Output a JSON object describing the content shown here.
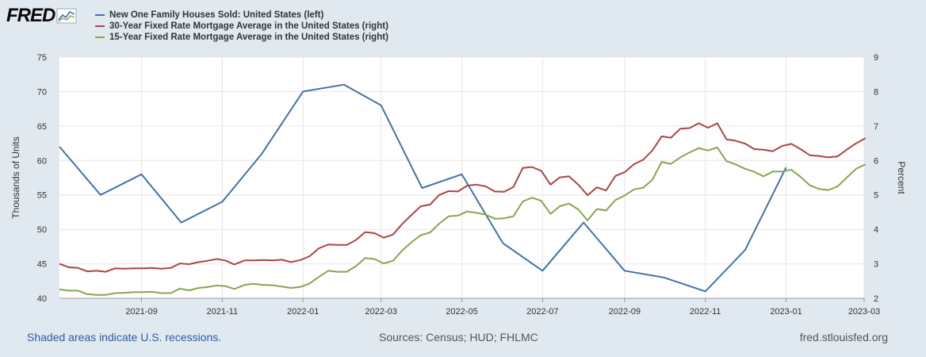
{
  "brand": {
    "logo_text": "FRED",
    "logo_icon": "chart-line-icon"
  },
  "legend": [
    {
      "label": "New One Family Houses Sold: United States (left)",
      "color": "#4572a7"
    },
    {
      "label": "30-Year Fixed Rate Mortgage Average in the United States (right)",
      "color": "#aa4643"
    },
    {
      "label": "15-Year Fixed Rate Mortgage Average in the United States (right)",
      "color": "#89a54e"
    }
  ],
  "footer": {
    "recessions_note": "Shaded areas indicate U.S. recessions.",
    "sources": "Sources: Census; HUD; FHLMC",
    "site": "fred.stlouisfed.org"
  },
  "chart_data": {
    "type": "line",
    "x_range": [
      "2021-07-01",
      "2023-03-01"
    ],
    "x_ticks": [
      "2021-09",
      "2021-11",
      "2022-01",
      "2022-03",
      "2022-05",
      "2022-07",
      "2022-09",
      "2022-11",
      "2023-01",
      "2023-03"
    ],
    "ylabel_left": "Thousands of Units",
    "ylabel_right": "Percent",
    "ylim_left": [
      40,
      75
    ],
    "ylim_right": [
      2,
      9
    ],
    "yticks_left": [
      40,
      45,
      50,
      55,
      60,
      65,
      70,
      75
    ],
    "yticks_right": [
      2,
      3,
      4,
      5,
      6,
      7,
      8,
      9
    ],
    "grid": true,
    "series": [
      {
        "name": "New One Family Houses Sold: United States (left)",
        "axis": "left",
        "color": "#4572a7",
        "x": [
          "2021-07-01",
          "2021-08-01",
          "2021-09-01",
          "2021-10-01",
          "2021-11-01",
          "2021-12-01",
          "2022-01-01",
          "2022-02-01",
          "2022-03-01",
          "2022-04-01",
          "2022-05-01",
          "2022-06-01",
          "2022-07-01",
          "2022-08-01",
          "2022-09-01",
          "2022-10-01",
          "2022-11-01",
          "2022-12-01",
          "2023-01-01"
        ],
        "y": [
          62,
          55,
          58,
          51,
          54,
          61,
          70,
          71,
          68,
          56,
          58,
          48,
          44,
          51,
          44,
          43,
          41,
          47,
          59
        ]
      },
      {
        "name": "30-Year Fixed Rate Mortgage Average in the United States (right)",
        "axis": "right",
        "color": "#aa4643",
        "x": [
          "2021-07-01",
          "2021-07-08",
          "2021-07-15",
          "2021-07-22",
          "2021-07-29",
          "2021-08-05",
          "2021-08-12",
          "2021-08-19",
          "2021-08-26",
          "2021-09-02",
          "2021-09-09",
          "2021-09-16",
          "2021-09-23",
          "2021-09-30",
          "2021-10-07",
          "2021-10-14",
          "2021-10-21",
          "2021-10-28",
          "2021-11-04",
          "2021-11-10",
          "2021-11-18",
          "2021-11-24",
          "2021-12-02",
          "2021-12-09",
          "2021-12-16",
          "2021-12-23",
          "2021-12-30",
          "2022-01-06",
          "2022-01-13",
          "2022-01-20",
          "2022-01-27",
          "2022-02-03",
          "2022-02-10",
          "2022-02-17",
          "2022-02-24",
          "2022-03-03",
          "2022-03-10",
          "2022-03-17",
          "2022-03-24",
          "2022-03-31",
          "2022-04-07",
          "2022-04-14",
          "2022-04-21",
          "2022-04-28",
          "2022-05-05",
          "2022-05-12",
          "2022-05-19",
          "2022-05-26",
          "2022-06-02",
          "2022-06-09",
          "2022-06-16",
          "2022-06-23",
          "2022-06-30",
          "2022-07-07",
          "2022-07-14",
          "2022-07-21",
          "2022-07-28",
          "2022-08-04",
          "2022-08-11",
          "2022-08-18",
          "2022-08-25",
          "2022-09-01",
          "2022-09-08",
          "2022-09-15",
          "2022-09-22",
          "2022-09-29",
          "2022-10-06",
          "2022-10-13",
          "2022-10-20",
          "2022-10-27",
          "2022-11-03",
          "2022-11-10",
          "2022-11-17",
          "2022-11-23",
          "2022-12-01",
          "2022-12-08",
          "2022-12-15",
          "2022-12-22",
          "2022-12-29",
          "2023-01-05",
          "2023-01-12",
          "2023-01-19",
          "2023-01-26",
          "2023-02-02",
          "2023-02-09",
          "2023-02-16",
          "2023-02-23",
          "2023-03-02"
        ],
        "y": [
          3.0,
          2.9,
          2.88,
          2.78,
          2.8,
          2.77,
          2.87,
          2.86,
          2.87,
          2.87,
          2.88,
          2.86,
          2.88,
          3.01,
          2.99,
          3.05,
          3.09,
          3.14,
          3.09,
          2.98,
          3.1,
          3.1,
          3.11,
          3.1,
          3.12,
          3.05,
          3.11,
          3.22,
          3.45,
          3.56,
          3.55,
          3.55,
          3.69,
          3.92,
          3.89,
          3.76,
          3.85,
          4.16,
          4.42,
          4.67,
          4.72,
          5.0,
          5.11,
          5.1,
          5.27,
          5.3,
          5.25,
          5.1,
          5.09,
          5.23,
          5.78,
          5.81,
          5.7,
          5.3,
          5.51,
          5.54,
          5.3,
          4.99,
          5.22,
          5.13,
          5.55,
          5.66,
          5.89,
          6.02,
          6.29,
          6.7,
          6.66,
          6.92,
          6.94,
          7.08,
          6.95,
          7.08,
          6.61,
          6.58,
          6.49,
          6.33,
          6.31,
          6.27,
          6.42,
          6.48,
          6.33,
          6.15,
          6.13,
          6.09,
          6.12,
          6.32,
          6.5,
          6.65
        ]
      },
      {
        "name": "15-Year Fixed Rate Mortgage Average in the United States (right)",
        "axis": "right",
        "color": "#89a54e",
        "x": [
          "2021-07-01",
          "2021-07-08",
          "2021-07-15",
          "2021-07-22",
          "2021-07-29",
          "2021-08-05",
          "2021-08-12",
          "2021-08-19",
          "2021-08-26",
          "2021-09-02",
          "2021-09-09",
          "2021-09-16",
          "2021-09-23",
          "2021-09-30",
          "2021-10-07",
          "2021-10-14",
          "2021-10-21",
          "2021-10-28",
          "2021-11-04",
          "2021-11-10",
          "2021-11-18",
          "2021-11-24",
          "2021-12-02",
          "2021-12-09",
          "2021-12-16",
          "2021-12-23",
          "2021-12-30",
          "2022-01-06",
          "2022-01-13",
          "2022-01-20",
          "2022-01-27",
          "2022-02-03",
          "2022-02-10",
          "2022-02-17",
          "2022-02-24",
          "2022-03-03",
          "2022-03-10",
          "2022-03-17",
          "2022-03-24",
          "2022-03-31",
          "2022-04-07",
          "2022-04-14",
          "2022-04-21",
          "2022-04-28",
          "2022-05-05",
          "2022-05-12",
          "2022-05-19",
          "2022-05-26",
          "2022-06-02",
          "2022-06-09",
          "2022-06-16",
          "2022-06-23",
          "2022-06-30",
          "2022-07-07",
          "2022-07-14",
          "2022-07-21",
          "2022-07-28",
          "2022-08-04",
          "2022-08-11",
          "2022-08-18",
          "2022-08-25",
          "2022-09-01",
          "2022-09-08",
          "2022-09-15",
          "2022-09-22",
          "2022-09-29",
          "2022-10-06",
          "2022-10-13",
          "2022-10-20",
          "2022-10-27",
          "2022-11-03",
          "2022-11-10",
          "2022-11-17",
          "2022-11-23",
          "2022-12-01",
          "2022-12-08",
          "2022-12-15",
          "2022-12-22",
          "2022-12-29",
          "2023-01-05",
          "2023-01-12",
          "2023-01-19",
          "2023-01-26",
          "2023-02-02",
          "2023-02-09",
          "2023-02-16",
          "2023-02-23",
          "2023-03-02"
        ],
        "y": [
          2.26,
          2.22,
          2.22,
          2.12,
          2.1,
          2.1,
          2.15,
          2.16,
          2.18,
          2.18,
          2.19,
          2.15,
          2.15,
          2.28,
          2.23,
          2.3,
          2.33,
          2.37,
          2.35,
          2.27,
          2.39,
          2.42,
          2.39,
          2.38,
          2.34,
          2.3,
          2.33,
          2.43,
          2.62,
          2.8,
          2.77,
          2.77,
          2.93,
          3.17,
          3.14,
          3.01,
          3.09,
          3.39,
          3.63,
          3.83,
          3.91,
          4.17,
          4.38,
          4.4,
          4.52,
          4.48,
          4.43,
          4.31,
          4.32,
          4.38,
          4.81,
          4.92,
          4.83,
          4.45,
          4.67,
          4.75,
          4.58,
          4.26,
          4.59,
          4.55,
          4.85,
          4.98,
          5.16,
          5.21,
          5.44,
          5.96,
          5.9,
          6.09,
          6.23,
          6.36,
          6.29,
          6.38,
          5.98,
          5.9,
          5.76,
          5.67,
          5.54,
          5.68,
          5.68,
          5.73,
          5.52,
          5.28,
          5.17,
          5.14,
          5.25,
          5.51,
          5.76,
          5.89
        ]
      }
    ]
  }
}
